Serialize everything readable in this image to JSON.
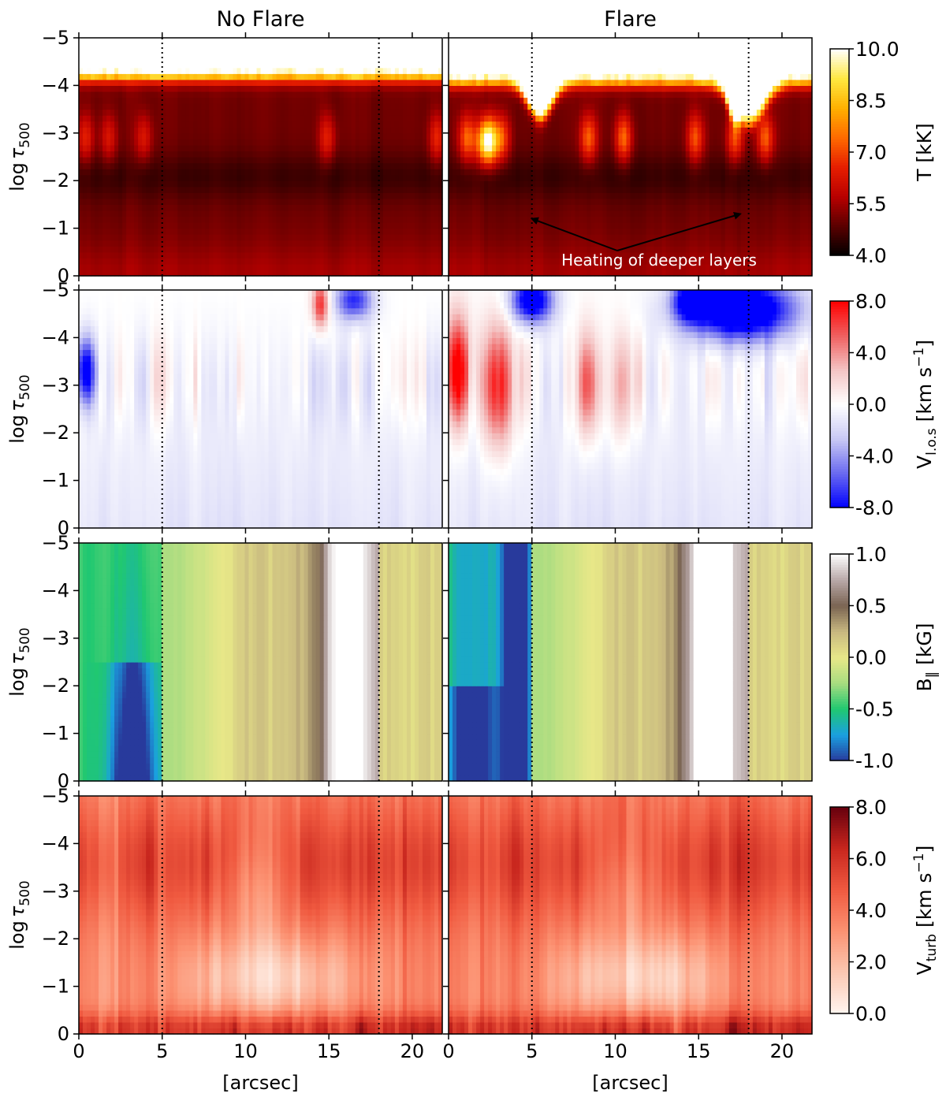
{
  "chart_data": {
    "type": "heatmap",
    "columns": [
      {
        "title": "No Flare",
        "xlabel": "[arcsec]",
        "xlim": [
          0,
          21.8
        ],
        "xticks": [
          "0",
          "5",
          "10",
          "15",
          "20"
        ],
        "dotted_x": [
          5,
          18
        ]
      },
      {
        "title": "Flare",
        "xlabel": "[arcsec]",
        "xlim": [
          0,
          21.8
        ],
        "xticks": [
          "0",
          "5",
          "10",
          "15",
          "20"
        ],
        "dotted_x": [
          5,
          18
        ]
      }
    ],
    "ylabel_main": "log",
    "ylabel_tau": "τ",
    "ylabel_sub": "500",
    "ylim": [
      0,
      -5
    ],
    "yticks": [
      "−5",
      "−4",
      "−3",
      "−2",
      "−1",
      "0"
    ],
    "rows": [
      {
        "quantity": "temperature",
        "colorbar_label": "T [kK]",
        "colorbar_ticks": [
          "10.0",
          "8.5",
          "7.0",
          "5.5",
          "4.0"
        ],
        "vmin": 4.0,
        "vmax": 10.0,
        "colormap": [
          "#000000",
          "#5a0000",
          "#b80000",
          "#e61e00",
          "#ff6a00",
          "#ffb000",
          "#ffe840",
          "#ffffff"
        ]
      },
      {
        "quantity": "line-of-sight velocity",
        "colorbar_label_main": "V",
        "colorbar_label_sub": "l.o.s",
        "colorbar_label_unit": " [km s",
        "colorbar_label_sup": "−1",
        "colorbar_label_end": "]",
        "colorbar_ticks": [
          "8.0",
          "4.0",
          "0.0",
          "-4.0",
          "-8.0"
        ],
        "vmin": -8.0,
        "vmax": 8.0,
        "colormap": [
          "#0000ff",
          "#6a6af0",
          "#c8c8f4",
          "#ffffff",
          "#f4c4c4",
          "#f06060",
          "#ff0000"
        ]
      },
      {
        "quantity": "longitudinal magnetic field",
        "colorbar_label_main": "B",
        "colorbar_label_sub": "‖",
        "colorbar_label_unit": " [kG]",
        "colorbar_ticks": [
          "1.0",
          "0.5",
          "0.0",
          "-0.5",
          "-1.0"
        ],
        "vmin": -1.0,
        "vmax": 1.0,
        "colormap": [
          "#283a9c",
          "#1aa0e0",
          "#20c870",
          "#a8dc80",
          "#e8e888",
          "#c8b880",
          "#7a6452",
          "#b8a8a8",
          "#ffffff"
        ]
      },
      {
        "quantity": "turbulent velocity",
        "colorbar_label_main": "V",
        "colorbar_label_sub": "turb",
        "colorbar_label_unit": " [km s",
        "colorbar_label_sup": "−1",
        "colorbar_label_end": "]",
        "colorbar_ticks": [
          "8.0",
          "6.0",
          "4.0",
          "2.0",
          "0.0"
        ],
        "vmin": 0.0,
        "vmax": 8.0,
        "colormap": [
          "#fff5f0",
          "#fcc8b2",
          "#fc9272",
          "#f05a40",
          "#c8261e",
          "#67000d"
        ]
      }
    ],
    "annotations": [
      {
        "text": "Heating of deeper layers",
        "panel": "temperature-flare",
        "arrows_to": [
          [
            5,
            -3.8
          ],
          [
            17.5,
            -3.7
          ]
        ],
        "from": [
          10,
          0
        ]
      }
    ]
  }
}
